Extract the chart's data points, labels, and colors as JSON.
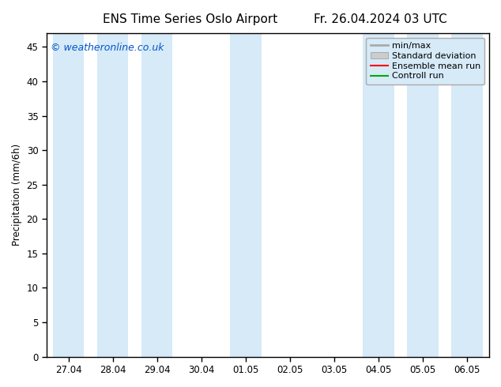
{
  "title_left": "ENS Time Series Oslo Airport",
  "title_right": "Fr. 26.04.2024 03 UTC",
  "ylabel": "Precipitation (mm/6h)",
  "xlabel": "",
  "ylim": [
    0,
    47
  ],
  "yticks": [
    0,
    5,
    10,
    15,
    20,
    25,
    30,
    35,
    40,
    45
  ],
  "xtick_labels": [
    "27.04",
    "28.04",
    "29.04",
    "30.04",
    "01.05",
    "02.05",
    "03.05",
    "04.05",
    "05.05",
    "06.05"
  ],
  "watermark": "© weatheronline.co.uk",
  "watermark_color": "#0055cc",
  "background_color": "#ffffff",
  "plot_bg_color": "#ffffff",
  "shaded_band_color": "#d6eaf8",
  "shaded_x_positions": [
    0,
    1,
    2,
    4,
    7,
    8,
    9
  ],
  "legend_items": [
    {
      "label": "min/max",
      "color": "#aaaaaa",
      "style": "line",
      "lw": 2
    },
    {
      "label": "Standard deviation",
      "color": "#cccccc",
      "style": "fill"
    },
    {
      "label": "Ensemble mean run",
      "color": "#ff0000",
      "style": "line",
      "lw": 1.5
    },
    {
      "label": "Controll run",
      "color": "#00aa00",
      "style": "line",
      "lw": 1.5
    }
  ],
  "title_fontsize": 11,
  "tick_label_fontsize": 8.5,
  "ylabel_fontsize": 8.5,
  "legend_fontsize": 8,
  "watermark_fontsize": 9,
  "spine_color": "#000000",
  "tick_color": "#000000"
}
